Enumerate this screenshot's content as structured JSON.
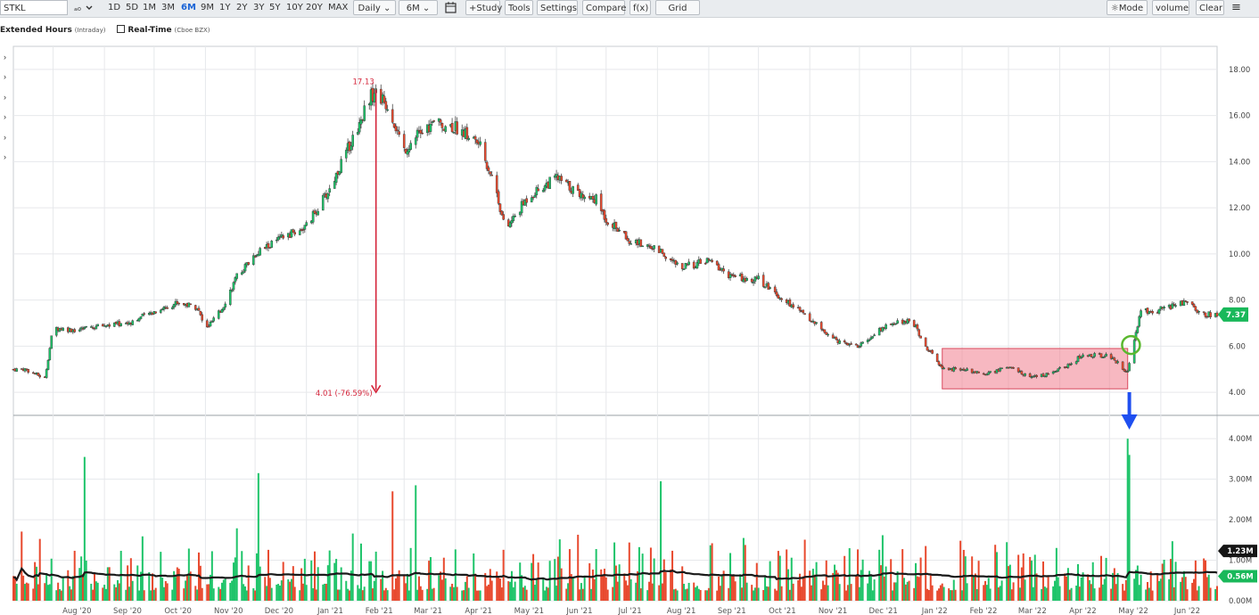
{
  "toolbar": {
    "symbol": "STKL",
    "ranges": [
      "1D",
      "5D",
      "1M",
      "3M",
      "6M",
      "9M",
      "1Y",
      "2Y",
      "3Y",
      "5Y",
      "10Y",
      "20Y",
      "MAX"
    ],
    "active_range": "6M",
    "interval": "Daily",
    "period": "6M",
    "buttons": [
      "+Study",
      "Tools",
      "Settings",
      "Compare",
      "f(x)",
      "Grid"
    ],
    "right_buttons": [
      "Mode",
      "volume",
      "Clear"
    ]
  },
  "subbar": {
    "extended": "Extended Hours",
    "extended_sub": "(Intraday)",
    "realtime": "Real-Time",
    "realtime_sub": "(Cboe BZX)"
  },
  "colors": {
    "up": "#1ec46a",
    "down": "#e8492e",
    "ma": "#1a1a1a",
    "annotation": "#d4243a",
    "box_fill": "#f07d8e",
    "circle": "#5ab82e",
    "arrow_blue": "#1f4ff0"
  },
  "chart_data": [
    {
      "type": "candlestick",
      "symbol": "STKL",
      "interval": "Daily",
      "x_labels": [
        "Aug '20",
        "Sep '20",
        "Oct '20",
        "Nov '20",
        "Dec '20",
        "Jan '21",
        "Feb '21",
        "Mar '21",
        "Apr '21",
        "May '21",
        "Jun '21",
        "Jul '21",
        "Aug '21",
        "Sep '21",
        "Oct '21",
        "Nov '21",
        "Dec '21",
        "Jan '22",
        "Feb '22",
        "Mar '22",
        "Apr '22",
        "May '22",
        "Jun '22"
      ],
      "y_ticks": [
        "18.00",
        "16.00",
        "14.00",
        "12.00",
        "10.00",
        "8.00",
        "6.00",
        "4.00"
      ],
      "ylim": [
        3.0,
        19.0
      ],
      "series": [
        {
          "x": [
            "2020-07-15",
            "2020-07-27",
            "2020-08-01",
            "2020-08-15",
            "2020-09-01",
            "2020-09-15",
            "2020-10-01",
            "2020-10-15",
            "2020-10-27",
            "2020-11-01",
            "2020-11-10",
            "2020-11-20",
            "2020-12-01",
            "2020-12-15",
            "2021-01-01",
            "2021-01-15",
            "2021-02-01",
            "2021-02-08",
            "2021-02-12",
            "2021-02-20",
            "2021-03-01",
            "2021-03-10",
            "2021-03-20",
            "2021-04-01",
            "2021-04-15",
            "2021-04-25",
            "2021-05-01",
            "2021-05-15",
            "2021-06-01",
            "2021-06-15",
            "2021-06-25",
            "2021-07-01",
            "2021-07-15",
            "2021-08-01",
            "2021-08-15",
            "2021-09-01",
            "2021-09-15",
            "2021-10-01",
            "2021-10-15",
            "2021-11-01",
            "2021-11-15",
            "2021-12-01",
            "2021-12-15",
            "2022-01-01",
            "2022-01-10",
            "2022-01-20",
            "2022-02-01",
            "2022-02-15",
            "2022-03-01",
            "2022-03-15",
            "2022-04-01",
            "2022-04-15",
            "2022-05-01",
            "2022-05-10",
            "2022-05-12",
            "2022-05-20",
            "2022-06-01",
            "2022-06-15",
            "2022-06-28"
          ],
          "values": [
            5.0,
            4.6,
            6.8,
            6.7,
            6.9,
            7.0,
            7.5,
            7.9,
            7.7,
            6.7,
            7.5,
            9.0,
            10.0,
            10.6,
            11.2,
            12.8,
            15.5,
            16.8,
            17.0,
            16.3,
            14.5,
            15.2,
            15.7,
            15.5,
            14.8,
            13.0,
            11.0,
            12.5,
            13.3,
            12.6,
            12.4,
            11.5,
            10.6,
            10.2,
            9.4,
            9.7,
            9.0,
            8.9,
            8.1,
            7.2,
            6.3,
            6.0,
            6.8,
            7.2,
            6.0,
            5.0,
            5.0,
            4.8,
            5.1,
            4.6,
            5.0,
            5.6,
            5.6,
            5.0,
            4.9,
            7.5,
            7.6,
            7.9,
            7.37
          ]
        }
      ],
      "annotations": [
        {
          "text": "17.13"
        },
        {
          "text": "4.01 (-76.59%)"
        }
      ],
      "last_price": "7.37"
    },
    {
      "type": "bar",
      "name": "volume",
      "y_ticks": [
        "4.00M",
        "3.00M",
        "2.00M",
        "1.00M",
        "0.00M"
      ],
      "ylim": [
        0,
        4.4
      ],
      "labels": [
        "1.23M",
        "0.56M"
      ],
      "moving_average_level": 1.23,
      "latest_volume": 0.56,
      "notable_spikes": [
        {
          "x": "2020-08-20",
          "value": 3.55
        },
        {
          "x": "2020-12-03",
          "value": 3.15
        },
        {
          "x": "2021-02-22",
          "value": 2.7
        },
        {
          "x": "2021-03-08",
          "value": 2.85
        },
        {
          "x": "2021-08-03",
          "value": 2.95
        },
        {
          "x": "2022-05-12",
          "value": 4.0
        },
        {
          "x": "2022-05-13",
          "value": 3.6
        }
      ]
    }
  ]
}
